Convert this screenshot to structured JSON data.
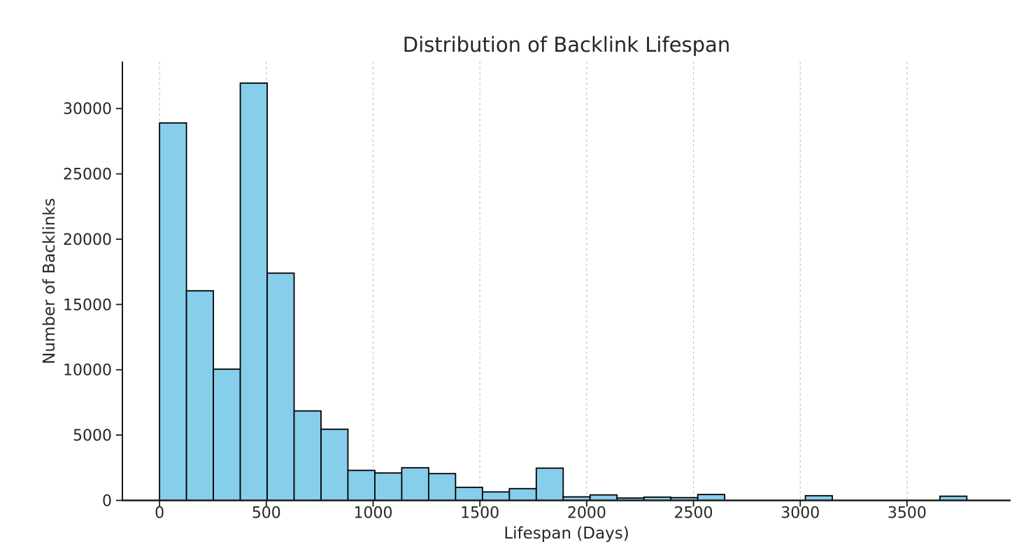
{
  "chart_data": {
    "type": "bar",
    "subtype": "histogram",
    "title": "Distribution of Backlink Lifespan",
    "xlabel": "Lifespan (Days)",
    "ylabel": "Number of Backlinks",
    "bin_width_days": 126,
    "bin_edges": [
      0,
      126,
      252,
      378,
      504,
      630,
      756,
      882,
      1008,
      1134,
      1260,
      1386,
      1512,
      1638,
      1764,
      1890,
      2016,
      2142,
      2268,
      2394,
      2520,
      2646,
      2772,
      2898,
      3024,
      3150,
      3276,
      3402,
      3528,
      3654,
      3780
    ],
    "counts": [
      28900,
      16050,
      10050,
      31950,
      17400,
      6850,
      5450,
      2300,
      2100,
      2500,
      2050,
      1000,
      650,
      900,
      2470,
      270,
      420,
      180,
      250,
      210,
      450,
      0,
      0,
      0,
      360,
      0,
      0,
      0,
      0,
      320
    ],
    "x_ticks": [
      0,
      500,
      1000,
      1500,
      2000,
      2500,
      3000,
      3500
    ],
    "y_ticks": [
      0,
      5000,
      10000,
      15000,
      20000,
      25000,
      30000
    ],
    "xlim": [
      -174,
      3985
    ],
    "ylim": [
      0,
      33600
    ],
    "grid": {
      "axis": "x",
      "linestyle": "dashed",
      "color": "#c9c9c9"
    },
    "legend": null,
    "style": {
      "bar_fill": "#87CEEB",
      "bar_edge": "#000000",
      "axis_color": "#1a1a1a",
      "text_color": "#262626",
      "background": "#ffffff"
    }
  }
}
